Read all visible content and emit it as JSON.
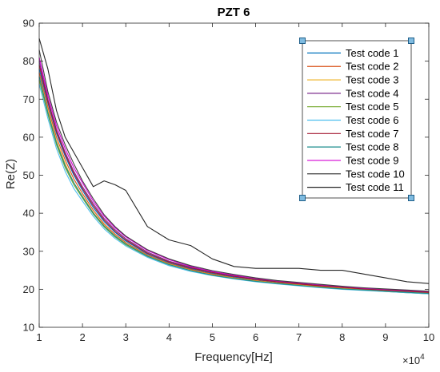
{
  "chart_data": {
    "type": "line",
    "title": "PZT 6",
    "xlabel": "Frequency[Hz]",
    "ylabel": "Re(Z)",
    "x_multiplier": "×10^4",
    "x_multiplier_base": "×10",
    "x_multiplier_exp": "4",
    "xlim": [
      1,
      10
    ],
    "ylim": [
      10,
      90
    ],
    "x_ticks": [
      "1",
      "2",
      "3",
      "4",
      "5",
      "6",
      "7",
      "8",
      "9",
      "10"
    ],
    "y_ticks": [
      "10",
      "20",
      "30",
      "40",
      "50",
      "60",
      "70",
      "80",
      "90"
    ],
    "legend_position": "top-right",
    "grid": false,
    "x": [
      1.0,
      1.2,
      1.4,
      1.6,
      1.8,
      2.0,
      2.25,
      2.5,
      2.75,
      3.0,
      3.5,
      4.0,
      4.5,
      5.0,
      5.5,
      6.0,
      6.5,
      7.0,
      7.5,
      8.0,
      8.5,
      9.0,
      9.5,
      10.0
    ],
    "series": [
      {
        "name": "Test code 1",
        "color": "#0072BD",
        "values": [
          78,
          69,
          61,
          55,
          50,
          46.0,
          41.5,
          37.8,
          35.0,
          32.7,
          29.3,
          27.0,
          25.4,
          24.2,
          23.2,
          22.5,
          21.9,
          21.3,
          20.9,
          20.5,
          20.1,
          19.8,
          19.5,
          19.2
        ]
      },
      {
        "name": "Test code 2",
        "color": "#D95319",
        "values": [
          77,
          68,
          60,
          54,
          49,
          45.2,
          40.8,
          37.2,
          34.5,
          32.3,
          29.0,
          26.8,
          25.2,
          24.0,
          23.0,
          22.3,
          21.7,
          21.2,
          20.7,
          20.3,
          19.9,
          19.6,
          19.3,
          19.0
        ]
      },
      {
        "name": "Test code 3",
        "color": "#EDB120",
        "values": [
          76,
          67,
          59,
          53,
          48,
          44.5,
          40.2,
          36.8,
          34.1,
          32.0,
          28.8,
          26.6,
          25.0,
          23.8,
          22.9,
          22.2,
          21.6,
          21.1,
          20.6,
          20.2,
          19.8,
          19.5,
          19.2,
          18.9
        ]
      },
      {
        "name": "Test code 4",
        "color": "#7E2F8E",
        "values": [
          80,
          70,
          62,
          56,
          51,
          47.0,
          42.5,
          38.6,
          35.7,
          33.3,
          29.8,
          27.4,
          25.8,
          24.5,
          23.5,
          22.7,
          22.1,
          21.5,
          21.0,
          20.6,
          20.2,
          19.9,
          19.6,
          19.3
        ]
      },
      {
        "name": "Test code 5",
        "color": "#77AC30",
        "values": [
          75,
          66,
          58,
          52,
          47.5,
          44.0,
          39.8,
          36.4,
          33.8,
          31.7,
          28.6,
          26.4,
          24.9,
          23.7,
          22.8,
          22.1,
          21.5,
          21.0,
          20.5,
          20.1,
          19.8,
          19.4,
          19.1,
          18.8
        ]
      },
      {
        "name": "Test code 6",
        "color": "#4DBEEE",
        "values": [
          74,
          65,
          57,
          51,
          46.5,
          43.2,
          39.2,
          35.9,
          33.4,
          31.4,
          28.4,
          26.2,
          24.7,
          23.6,
          22.7,
          22.0,
          21.4,
          20.9,
          20.4,
          20.0,
          19.7,
          19.4,
          19.1,
          18.8
        ]
      },
      {
        "name": "Test code 7",
        "color": "#A2142F",
        "values": [
          79,
          69.5,
          61.5,
          55.5,
          50.5,
          46.5,
          42.0,
          38.2,
          35.3,
          33.0,
          29.5,
          27.2,
          25.6,
          24.4,
          23.4,
          22.6,
          22.0,
          21.4,
          20.9,
          20.5,
          20.1,
          19.8,
          19.5,
          19.2
        ]
      },
      {
        "name": "Test code 8",
        "color": "#1A8C8C",
        "values": [
          76,
          66.5,
          58.5,
          52.5,
          48,
          44.3,
          40.0,
          36.6,
          34.0,
          31.9,
          28.7,
          26.5,
          24.9,
          23.7,
          22.8,
          22.1,
          21.5,
          21.0,
          20.5,
          20.1,
          19.8,
          19.5,
          19.2,
          18.9
        ]
      },
      {
        "name": "Test code 9",
        "color": "#D400D4",
        "values": [
          81,
          71,
          63,
          57,
          52,
          48.0,
          43.2,
          39.2,
          36.2,
          33.8,
          30.2,
          27.8,
          26.0,
          24.7,
          23.7,
          22.9,
          22.2,
          21.7,
          21.2,
          20.7,
          20.3,
          20.0,
          19.7,
          19.4
        ]
      },
      {
        "name": "Test code 10",
        "color": "#404040",
        "values": [
          83,
          72,
          64,
          58,
          53,
          48.5,
          43.8,
          39.6,
          36.5,
          34.0,
          30.4,
          28.0,
          26.2,
          24.9,
          23.9,
          23.0,
          22.3,
          21.8,
          21.3,
          20.8,
          20.4,
          20.1,
          19.8,
          19.5
        ]
      },
      {
        "name": "Test code 11",
        "color": "#262626",
        "values": [
          86,
          78,
          67,
          60,
          56,
          52.0,
          47.0,
          48.5,
          47.5,
          46.0,
          36.5,
          33.0,
          31.5,
          28.0,
          26.0,
          25.5,
          25.5,
          25.5,
          25.0,
          25.0,
          24.0,
          23.0,
          22.0,
          21.5
        ]
      }
    ]
  }
}
